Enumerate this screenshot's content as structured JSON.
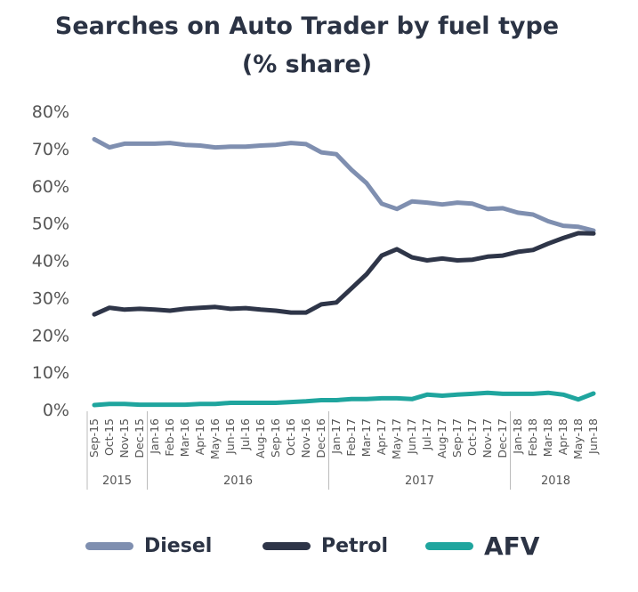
{
  "colors": {
    "diesel": "#7f8fb0",
    "petrol": "#2e3548",
    "afv": "#1fa59e",
    "text": "#2b3344",
    "axis": "#555555"
  },
  "chart_data": {
    "type": "line",
    "title": "Searches on Auto Trader by fuel type",
    "subtitle": "(% share)",
    "xlabel": "",
    "ylabel": "",
    "ylim": [
      0,
      80
    ],
    "y_ticks": [
      "0%",
      "10%",
      "20%",
      "30%",
      "40%",
      "50%",
      "60%",
      "70%",
      "80%"
    ],
    "grid": false,
    "legend_position": "bottom",
    "categories": [
      "Sep-15",
      "Oct-15",
      "Nov-15",
      "Dec-15",
      "Jan-16",
      "Feb-16",
      "Mar-16",
      "Apr-16",
      "May-16",
      "Jun-16",
      "Jul-16",
      "Aug-16",
      "Sep-16",
      "Oct-16",
      "Nov-16",
      "Dec-16",
      "Jan-17",
      "Feb-17",
      "Mar-17",
      "Apr-17",
      "May-17",
      "Jun-17",
      "Jul-17",
      "Aug-17",
      "Sep-17",
      "Oct-17",
      "Nov-17",
      "Dec-17",
      "Jan-18",
      "Feb-18",
      "Mar-18",
      "Apr-18",
      "May-18",
      "Jun-18"
    ],
    "year_groups": [
      {
        "label": "2015",
        "start": 0,
        "end": 3
      },
      {
        "label": "2016",
        "start": 4,
        "end": 15
      },
      {
        "label": "2017",
        "start": 16,
        "end": 27
      },
      {
        "label": "2018",
        "start": 28,
        "end": 33
      }
    ],
    "series": [
      {
        "name": "Diesel",
        "color": "#7f8fb0",
        "values": [
          72.5,
          70.3,
          71.3,
          71.3,
          71.3,
          71.5,
          71.0,
          70.8,
          70.3,
          70.5,
          70.5,
          70.8,
          71.0,
          71.5,
          71.2,
          69.0,
          68.5,
          64.3,
          60.7,
          55.2,
          53.8,
          55.8,
          55.5,
          55.0,
          55.5,
          55.2,
          53.8,
          54.0,
          52.8,
          52.3,
          50.5,
          49.3,
          49.0,
          48.0
        ]
      },
      {
        "name": "Petrol",
        "color": "#2e3548",
        "values": [
          25.5,
          27.3,
          26.8,
          27.0,
          26.8,
          26.5,
          27.0,
          27.3,
          27.5,
          27.0,
          27.2,
          26.8,
          26.5,
          26.0,
          26.0,
          28.2,
          28.7,
          32.5,
          36.3,
          41.3,
          43.0,
          40.8,
          40.0,
          40.5,
          40.0,
          40.2,
          41.0,
          41.3,
          42.3,
          42.8,
          44.5,
          46.0,
          47.3,
          47.2
        ]
      },
      {
        "name": "AFV",
        "color": "#1fa59e",
        "values": [
          1.2,
          1.5,
          1.5,
          1.3,
          1.3,
          1.3,
          1.3,
          1.5,
          1.5,
          1.8,
          1.8,
          1.8,
          1.8,
          2.0,
          2.2,
          2.5,
          2.5,
          2.8,
          2.8,
          3.0,
          3.0,
          2.8,
          4.0,
          3.7,
          4.0,
          4.2,
          4.5,
          4.2,
          4.2,
          4.2,
          4.5,
          4.0,
          2.7,
          4.3
        ]
      }
    ]
  },
  "legend": [
    {
      "label": "Diesel",
      "color": "#7f8fb0"
    },
    {
      "label": "Petrol",
      "color": "#2e3548"
    },
    {
      "label": "AFV",
      "color": "#1fa59e"
    }
  ]
}
